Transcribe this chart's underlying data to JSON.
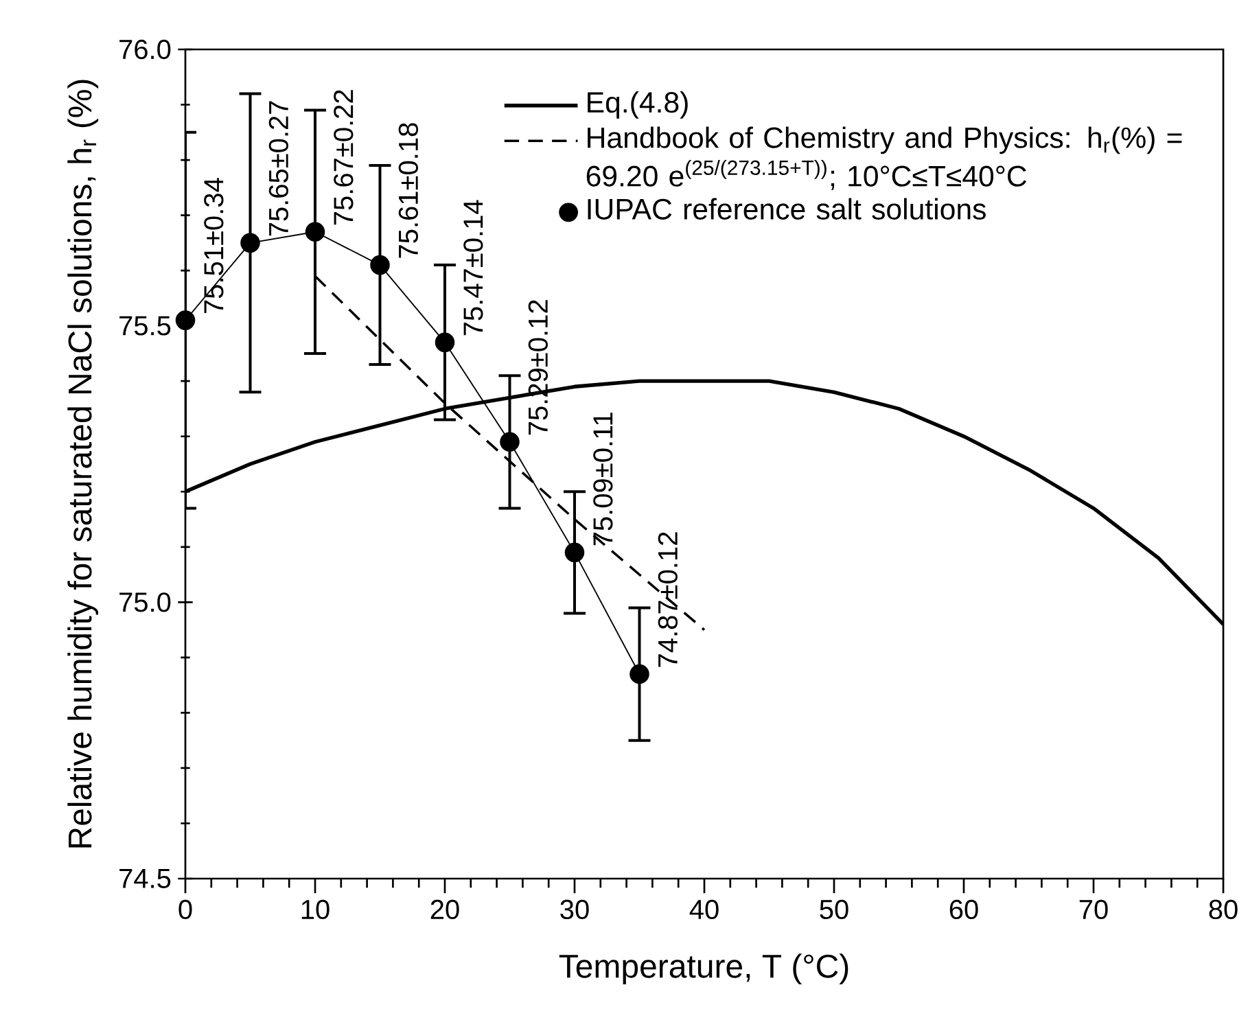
{
  "chart_data": {
    "type": "line",
    "xlabel": "Temperature, T (°C)",
    "ylabel": "Relative humidity for saturated NaCl solutions, h$_{r}$ (%)",
    "xlim": [
      0,
      80
    ],
    "xticks": [
      0,
      10,
      20,
      30,
      40,
      50,
      60,
      70,
      80
    ],
    "ylim": [
      74.5,
      76.0
    ],
    "yticks": [
      {
        "value": 74.5,
        "label": "74.5"
      },
      {
        "value": 75.0,
        "label": "75.0"
      },
      {
        "value": 75.5,
        "label": "75.5"
      },
      {
        "value": 76.0,
        "label": "76.0"
      }
    ],
    "grid": false,
    "legend": "top right",
    "series": [
      {
        "name": "Eq.(4.8)",
        "color": "#000000",
        "marker": "none",
        "line_style": "solid",
        "x": [
          0,
          5,
          10,
          15,
          20,
          25,
          30,
          35,
          40,
          45,
          50,
          55,
          60,
          65,
          70,
          75,
          80
        ],
        "values": [
          75.2,
          75.25,
          75.29,
          75.32,
          75.35,
          75.37,
          75.39,
          75.4,
          75.4,
          75.4,
          75.38,
          75.35,
          75.3,
          75.24,
          75.17,
          75.08,
          74.96
        ]
      },
      {
        "name": "Handbook of Chemistry and Physics: h$_{r}$(%) = 69.20 e$^{(25/(273.15+T))}$; 10°C≤T≤40°C",
        "color": "#000000",
        "marker": "none",
        "line_style": "dashed",
        "x": [
          10,
          20,
          30,
          40
        ],
        "values": [
          75.59,
          75.36,
          75.15,
          74.95
        ]
      },
      {
        "name": "IUPAC reference salt solutions",
        "color": "#000000",
        "marker": "circle",
        "line_style": "solid",
        "x": [
          0,
          5,
          10,
          15,
          20,
          25,
          30,
          35
        ],
        "values": [
          75.51,
          75.65,
          75.67,
          75.61,
          75.47,
          75.29,
          75.09,
          74.87
        ],
        "errors": [
          0.34,
          0.27,
          0.22,
          0.18,
          0.14,
          0.12,
          0.11,
          0.12
        ],
        "value_labels": [
          "75.51±0.34",
          "75.65±0.27",
          "75.67±0.22",
          "75.61±0.18",
          "75.47±0.14",
          "75.29±0.12",
          "75.09±0.11",
          "74.87±0.12"
        ]
      }
    ]
  }
}
